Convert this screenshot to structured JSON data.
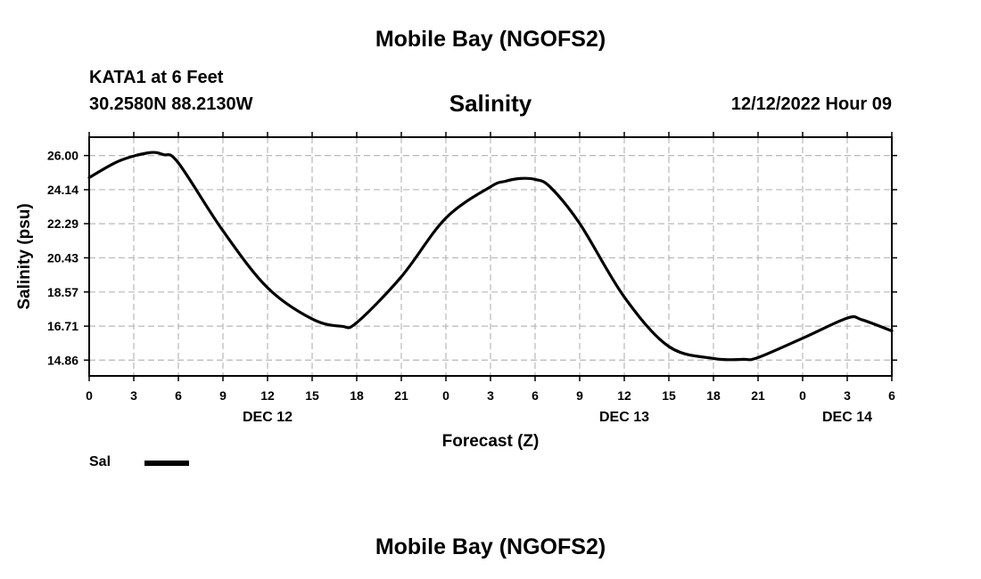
{
  "header": {
    "title": "Mobile Bay (NGOFS2)",
    "station": "KATA1 at 6 Feet",
    "coords": "30.2580N  88.2130W",
    "variable": "Salinity",
    "datetime": "12/12/2022 Hour 09"
  },
  "footer": {
    "title": "Mobile Bay (NGOFS2)"
  },
  "legend": {
    "label": "Sal",
    "color": "#000000"
  },
  "chart_data": {
    "type": "line",
    "title": "Salinity",
    "xlabel": "Forecast (Z)",
    "ylabel": "Salinity (psu)",
    "x_unit": "forecast hour from 00Z Dec 12",
    "xlim": [
      0,
      54
    ],
    "ylim": [
      14.0,
      27.0
    ],
    "grid": true,
    "x_ticks": [
      {
        "x": 0,
        "label": "0"
      },
      {
        "x": 3,
        "label": "3"
      },
      {
        "x": 6,
        "label": "6"
      },
      {
        "x": 9,
        "label": "9"
      },
      {
        "x": 12,
        "label": "12"
      },
      {
        "x": 15,
        "label": "15"
      },
      {
        "x": 18,
        "label": "18"
      },
      {
        "x": 21,
        "label": "21"
      },
      {
        "x": 24,
        "label": "0"
      },
      {
        "x": 27,
        "label": "3"
      },
      {
        "x": 30,
        "label": "6"
      },
      {
        "x": 33,
        "label": "9"
      },
      {
        "x": 36,
        "label": "12"
      },
      {
        "x": 39,
        "label": "15"
      },
      {
        "x": 42,
        "label": "18"
      },
      {
        "x": 45,
        "label": "21"
      },
      {
        "x": 48,
        "label": "0"
      },
      {
        "x": 51,
        "label": "3"
      },
      {
        "x": 54,
        "label": "6"
      }
    ],
    "date_labels": [
      {
        "x": 12,
        "label": "DEC 12"
      },
      {
        "x": 36,
        "label": "DEC 13"
      },
      {
        "x": 51,
        "label": "DEC 14"
      }
    ],
    "y_ticks": [
      {
        "y": 26.0,
        "label": "26.00"
      },
      {
        "y": 24.14,
        "label": "24.14"
      },
      {
        "y": 22.29,
        "label": "22.29"
      },
      {
        "y": 20.43,
        "label": "20.43"
      },
      {
        "y": 18.57,
        "label": "18.57"
      },
      {
        "y": 16.71,
        "label": "16.71"
      },
      {
        "y": 14.86,
        "label": "14.86"
      }
    ],
    "series": [
      {
        "name": "Sal",
        "color": "#000000",
        "x": [
          0,
          2,
          4,
          5,
          6,
          9,
          12,
          15,
          17,
          18,
          21,
          24,
          27,
          28,
          29,
          30,
          31,
          33,
          36,
          39,
          42,
          44,
          45,
          48,
          51,
          52,
          54
        ],
        "y": [
          24.8,
          25.7,
          26.15,
          26.05,
          25.6,
          21.9,
          18.8,
          17.1,
          16.7,
          16.9,
          19.4,
          22.6,
          24.3,
          24.6,
          24.75,
          24.7,
          24.3,
          22.3,
          18.3,
          15.6,
          14.95,
          14.9,
          15.0,
          16.05,
          17.15,
          17.05,
          16.45
        ]
      }
    ]
  }
}
